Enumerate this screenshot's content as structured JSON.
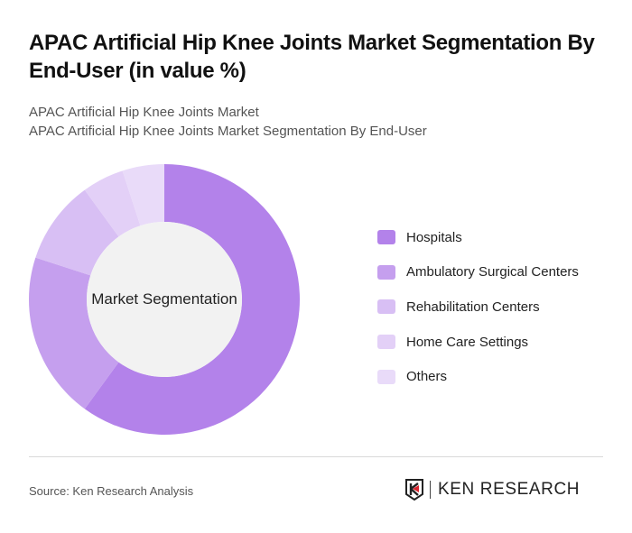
{
  "header": {
    "title": "APAC Artificial Hip Knee Joints Market Segmentation By End-User (in value %)",
    "subtitle_line1": "APAC Artificial Hip Knee Joints Market",
    "subtitle_line2": "APAC Artificial Hip Knee Joints Market Segmentation By End-User"
  },
  "chart_data": {
    "type": "pie",
    "title": "APAC Artificial Hip Knee Joints Market Segmentation By End-User (in value %)",
    "center_label": "Market Segmentation",
    "categories": [
      "Hospitals",
      "Ambulatory Surgical Centers",
      "Rehabilitation Centers",
      "Home Care Settings",
      "Others"
    ],
    "values": [
      60,
      20,
      10,
      5,
      5
    ],
    "colors": [
      "#b382ea",
      "#c59fee",
      "#d8bff4",
      "#e3d0f7",
      "#e9dbf9"
    ],
    "legend_position": "right",
    "donut": true
  },
  "footer": {
    "source": "Source: Ken Research Analysis",
    "logo_text": "KEN RESEARCH"
  }
}
